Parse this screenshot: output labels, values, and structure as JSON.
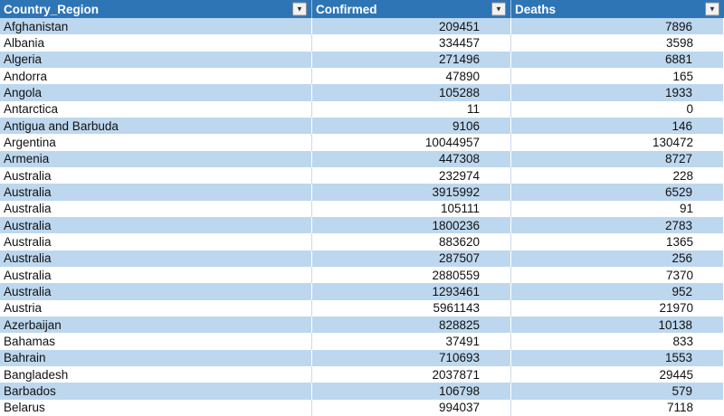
{
  "colors": {
    "header_bg": "#2E75B6",
    "header_text": "#FFFFFF",
    "band_row_bg": "#BDD7EE",
    "plain_row_bg": "#FFFFFF"
  },
  "icons": {
    "filter_dropdown": "▼"
  },
  "table": {
    "columns": [
      {
        "label": "Country_Region",
        "align": "left"
      },
      {
        "label": "Confirmed",
        "align": "right"
      },
      {
        "label": "Deaths",
        "align": "right"
      }
    ],
    "rows": [
      [
        "Afghanistan",
        "209451",
        "7896"
      ],
      [
        "Albania",
        "334457",
        "3598"
      ],
      [
        "Algeria",
        "271496",
        "6881"
      ],
      [
        "Andorra",
        "47890",
        "165"
      ],
      [
        "Angola",
        "105288",
        "1933"
      ],
      [
        "Antarctica",
        "11",
        "0"
      ],
      [
        "Antigua and Barbuda",
        "9106",
        "146"
      ],
      [
        "Argentina",
        "10044957",
        "130472"
      ],
      [
        "Armenia",
        "447308",
        "8727"
      ],
      [
        "Australia",
        "232974",
        "228"
      ],
      [
        "Australia",
        "3915992",
        "6529"
      ],
      [
        "Australia",
        "105111",
        "91"
      ],
      [
        "Australia",
        "1800236",
        "2783"
      ],
      [
        "Australia",
        "883620",
        "1365"
      ],
      [
        "Australia",
        "287507",
        "256"
      ],
      [
        "Australia",
        "2880559",
        "7370"
      ],
      [
        "Australia",
        "1293461",
        "952"
      ],
      [
        "Austria",
        "5961143",
        "21970"
      ],
      [
        "Azerbaijan",
        "828825",
        "10138"
      ],
      [
        "Bahamas",
        "37491",
        "833"
      ],
      [
        "Bahrain",
        "710693",
        "1553"
      ],
      [
        "Bangladesh",
        "2037871",
        "29445"
      ],
      [
        "Barbados",
        "106798",
        "579"
      ],
      [
        "Belarus",
        "994037",
        "7118"
      ]
    ]
  }
}
